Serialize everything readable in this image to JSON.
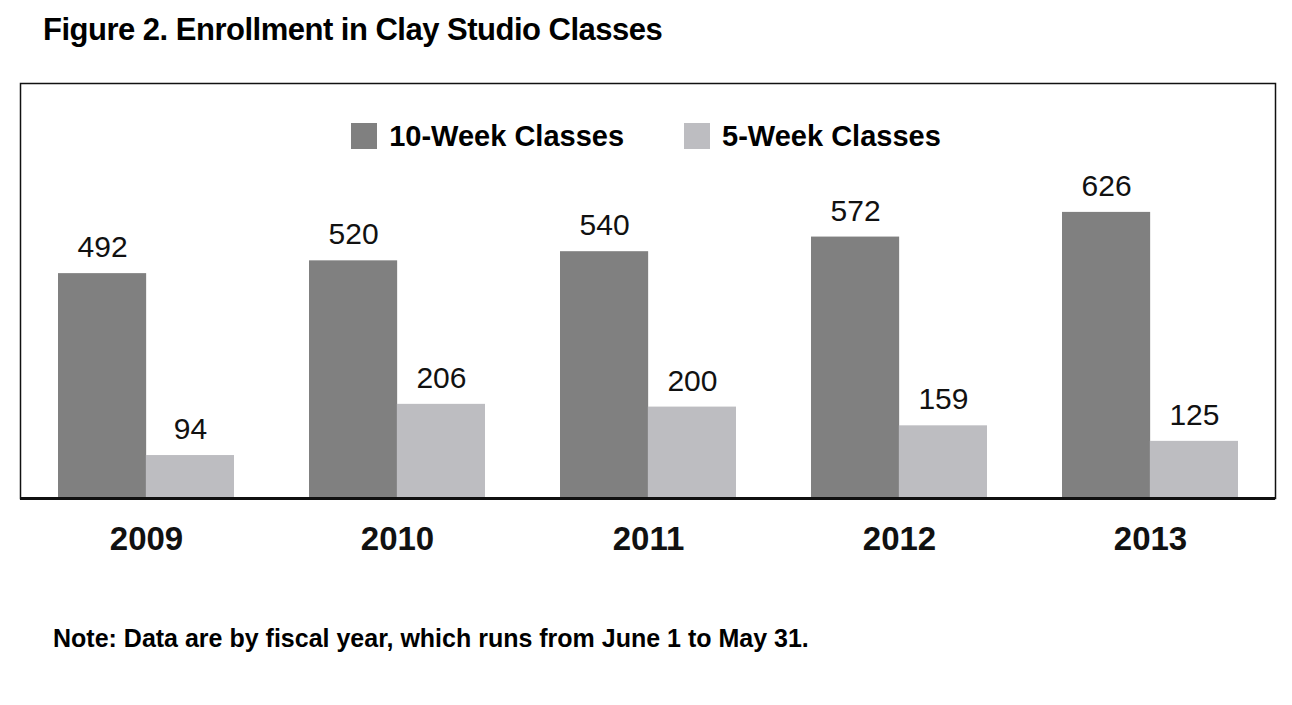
{
  "chart_data": {
    "type": "bar",
    "title": "Figure 2. Enrollment in Clay Studio Classes",
    "note": "Note: Data are by fiscal year, which runs from June 1 to May 31.",
    "categories": [
      "2009",
      "2010",
      "2011",
      "2012",
      "2013"
    ],
    "series": [
      {
        "name": "10-Week Classes",
        "color": "#808080",
        "values": [
          492,
          520,
          540,
          572,
          626
        ]
      },
      {
        "name": "5-Week Classes",
        "color": "#bdbdc1",
        "values": [
          94,
          206,
          200,
          159,
          125
        ]
      }
    ],
    "ylim": [
      0,
      908
    ],
    "grid": false,
    "legend": "top",
    "data_labels": true,
    "tick_labels": "x"
  }
}
